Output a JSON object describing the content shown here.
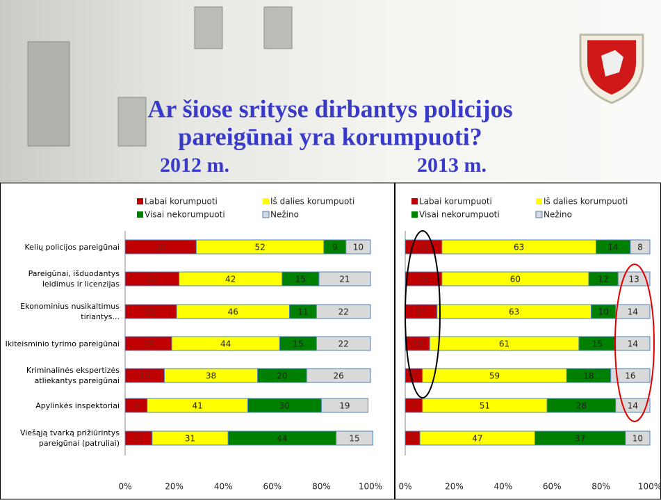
{
  "header": {
    "title_line1": "Ar šiose srityse dirbantys policijos",
    "title_line2": "pareigūnai yra korumpuoti?"
  },
  "chart_data": [
    {
      "type": "stacked-barh",
      "title": "2012 m.",
      "categories": [
        "Kelių policijos pareigūnai",
        "Pareigūnai, išduodantys leidimus ir licenzijas",
        "Ekonominius nusikaltimus tiriantys...",
        "Ikiteisminio tyrimo pareigūnai",
        "Kriminalinės ekspertizės atliekantys pareigūnai",
        "Apylinkės inspektoriai",
        "Viešąją tvarką prižiūrintys pareigūnai (patruliai)"
      ],
      "series": [
        {
          "name": "Labai korumpuoti",
          "color": "#c00000",
          "values": [
            29,
            22,
            21,
            19,
            16,
            9,
            11
          ]
        },
        {
          "name": "Iš dalies korumpuoti",
          "color": "#ffff00",
          "values": [
            52,
            42,
            46,
            44,
            38,
            41,
            31
          ]
        },
        {
          "name": "Visai nekorumpuoti",
          "color": "#008000",
          "values": [
            9,
            15,
            11,
            15,
            20,
            30,
            44
          ]
        },
        {
          "name": "Nežino",
          "color": "#d9d9d9",
          "values": [
            10,
            21,
            22,
            22,
            26,
            19,
            15
          ]
        }
      ],
      "xlim": [
        0,
        100
      ],
      "xticks": [
        {
          "value": 0,
          "label": "0%"
        },
        {
          "value": 20,
          "label": "20%"
        },
        {
          "value": 40,
          "label": "40%"
        },
        {
          "value": 60,
          "label": "60%"
        },
        {
          "value": 80,
          "label": "80%"
        },
        {
          "value": 100,
          "label": "100%"
        }
      ]
    },
    {
      "type": "stacked-barh",
      "title": "2013 m.",
      "categories": [
        null,
        null,
        null,
        null,
        null,
        null,
        null
      ],
      "series": [
        {
          "name": "Labai korumpuoti",
          "color": "#c00000",
          "values": [
            15,
            15,
            13,
            10,
            7,
            7,
            6
          ]
        },
        {
          "name": "Iš dalies korumpuoti",
          "color": "#ffff00",
          "values": [
            63,
            60,
            63,
            61,
            59,
            51,
            47
          ]
        },
        {
          "name": "Visai nekorumpuoti",
          "color": "#008000",
          "values": [
            14,
            12,
            10,
            15,
            18,
            28,
            37
          ]
        },
        {
          "name": "Nežino",
          "color": "#d9d9d9",
          "values": [
            8,
            13,
            14,
            14,
            16,
            14,
            10
          ]
        }
      ],
      "xlim": [
        0,
        100
      ],
      "xticks": [
        {
          "value": 0,
          "label": "0%"
        },
        {
          "value": 20,
          "label": "20%"
        },
        {
          "value": 40,
          "label": "40%"
        },
        {
          "value": 60,
          "label": "60%"
        },
        {
          "value": 80,
          "label": "80%"
        },
        {
          "value": 100,
          "label": "100%"
        }
      ]
    }
  ]
}
